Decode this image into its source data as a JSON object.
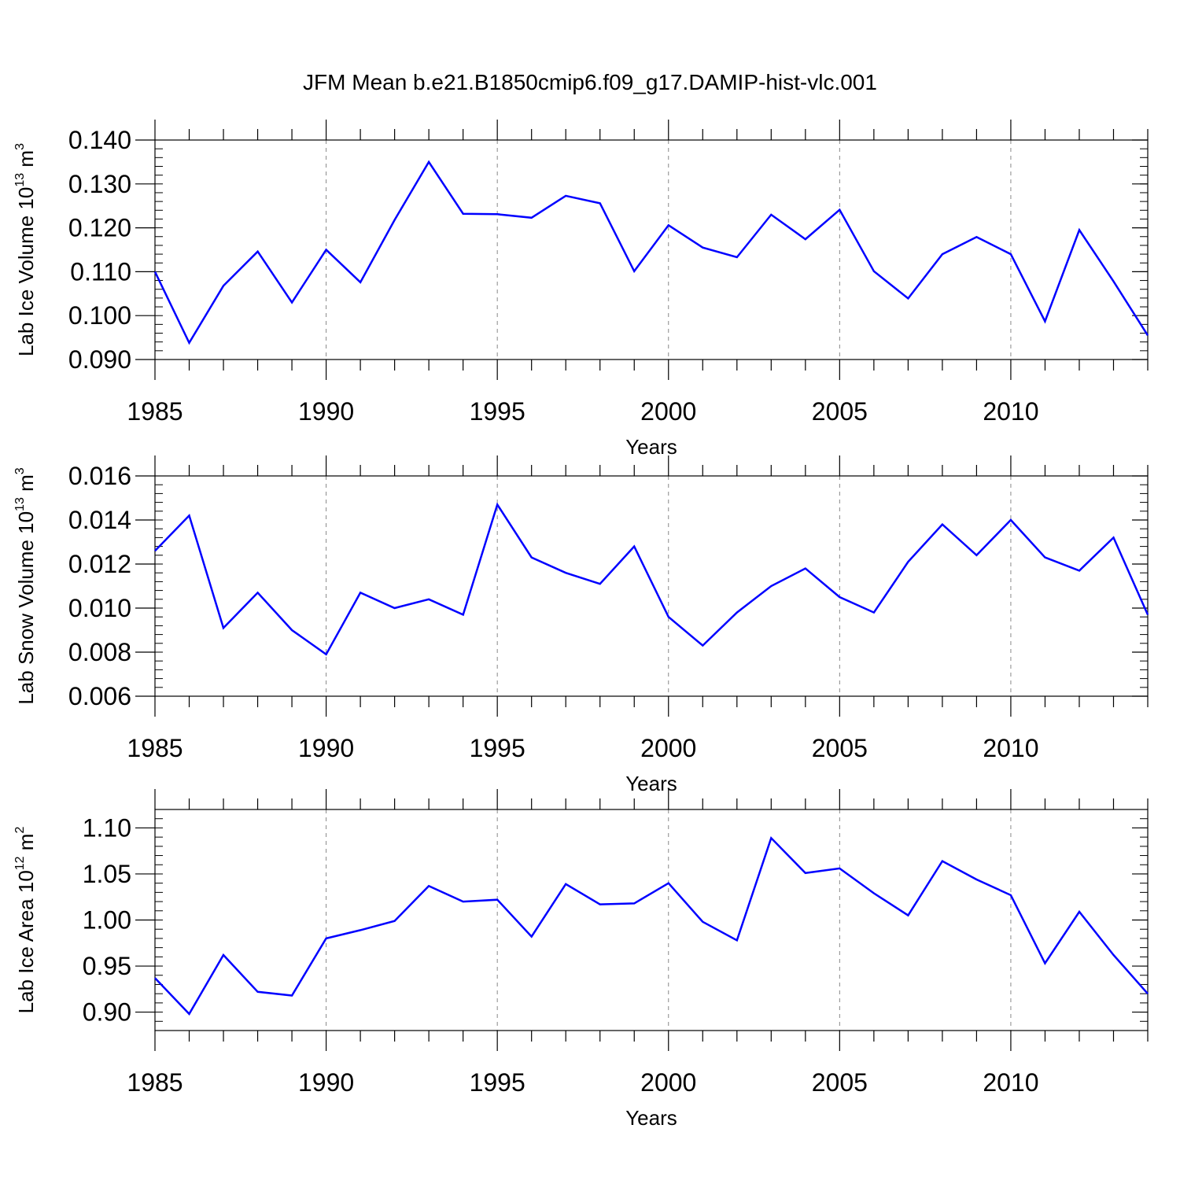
{
  "figure": {
    "title": "JFM Mean b.e21.B1850cmip6.f09_g17.DAMIP-hist-vlc.001",
    "line_color": "#0000ff"
  },
  "chart_data": [
    {
      "type": "line",
      "xlabel": "Years",
      "ylabel": {
        "text": "Lab Ice Volume 10",
        "exponent": "13",
        "unit": " m",
        "unit_exponent": "3"
      },
      "xlim": [
        1985,
        2014
      ],
      "ylim": [
        0.09,
        0.14
      ],
      "x_ticks": [
        1985,
        1990,
        1995,
        2000,
        2005,
        2010
      ],
      "x_tick_labels": [
        "1985",
        "1990",
        "1995",
        "2000",
        "2005",
        "2010"
      ],
      "y_ticks": [
        0.09,
        0.1,
        0.11,
        0.12,
        0.13,
        0.14
      ],
      "y_tick_labels": [
        "0.090",
        "0.100",
        "0.110",
        "0.120",
        "0.130",
        "0.140"
      ],
      "y_minor_step": 0.002,
      "grid": "dashed vertical at major x ticks",
      "x": [
        1985,
        1986,
        1987,
        1988,
        1989,
        1990,
        1991,
        1992,
        1993,
        1994,
        1995,
        1996,
        1997,
        1998,
        1999,
        2000,
        2001,
        2002,
        2003,
        2004,
        2005,
        2006,
        2007,
        2008,
        2009,
        2010,
        2011,
        2012,
        2013,
        2014
      ],
      "series": [
        {
          "name": "Lab Ice Volume",
          "values": [
            0.11,
            0.0938,
            0.1068,
            0.1146,
            0.103,
            0.115,
            0.1076,
            0.1218,
            0.135,
            0.1232,
            0.1231,
            0.1223,
            0.1273,
            0.1256,
            0.1101,
            0.1206,
            0.1155,
            0.1133,
            0.123,
            0.1174,
            0.1241,
            0.1101,
            0.1039,
            0.114,
            0.1179,
            0.114,
            0.0987,
            0.1195,
            0.1078,
            0.0955
          ]
        }
      ]
    },
    {
      "type": "line",
      "xlabel": "Years",
      "ylabel": {
        "text": "Lab Snow Volume 10",
        "exponent": "13",
        "unit": " m",
        "unit_exponent": "3"
      },
      "xlim": [
        1985,
        2014
      ],
      "ylim": [
        0.006,
        0.016
      ],
      "x_ticks": [
        1985,
        1990,
        1995,
        2000,
        2005,
        2010
      ],
      "x_tick_labels": [
        "1985",
        "1990",
        "1995",
        "2000",
        "2005",
        "2010"
      ],
      "y_ticks": [
        0.006,
        0.008,
        0.01,
        0.012,
        0.014,
        0.016
      ],
      "y_tick_labels": [
        "0.006",
        "0.008",
        "0.010",
        "0.012",
        "0.014",
        "0.016"
      ],
      "y_minor_step": 0.0004,
      "grid": "dashed vertical at major x ticks",
      "x": [
        1985,
        1986,
        1987,
        1988,
        1989,
        1990,
        1991,
        1992,
        1993,
        1994,
        1995,
        1996,
        1997,
        1998,
        1999,
        2000,
        2001,
        2002,
        2003,
        2004,
        2005,
        2006,
        2007,
        2008,
        2009,
        2010,
        2011,
        2012,
        2013,
        2014
      ],
      "series": [
        {
          "name": "Lab Snow Volume",
          "values": [
            0.0126,
            0.0142,
            0.0091,
            0.0107,
            0.009,
            0.0079,
            0.0107,
            0.01,
            0.0104,
            0.0097,
            0.0147,
            0.0123,
            0.0116,
            0.0111,
            0.0128,
            0.0096,
            0.0083,
            0.0098,
            0.011,
            0.0118,
            0.0105,
            0.0098,
            0.0121,
            0.0138,
            0.0124,
            0.014,
            0.0123,
            0.0117,
            0.0132,
            0.0097
          ]
        }
      ]
    },
    {
      "type": "line",
      "xlabel": "Years",
      "ylabel": {
        "text": "Lab Ice Area 10",
        "exponent": "12",
        "unit": " m",
        "unit_exponent": "2"
      },
      "xlim": [
        1985,
        2014
      ],
      "ylim": [
        0.88,
        1.12
      ],
      "x_ticks": [
        1985,
        1990,
        1995,
        2000,
        2005,
        2010
      ],
      "x_tick_labels": [
        "1985",
        "1990",
        "1995",
        "2000",
        "2005",
        "2010"
      ],
      "y_ticks": [
        0.9,
        0.95,
        1.0,
        1.05,
        1.1
      ],
      "y_tick_labels": [
        "0.90",
        "0.95",
        "1.00",
        "1.05",
        "1.10"
      ],
      "y_minor_step": 0.01,
      "grid": "dashed vertical at major x ticks",
      "x": [
        1985,
        1986,
        1987,
        1988,
        1989,
        1990,
        1991,
        1992,
        1993,
        1994,
        1995,
        1996,
        1997,
        1998,
        1999,
        2000,
        2001,
        2002,
        2003,
        2004,
        2005,
        2006,
        2007,
        2008,
        2009,
        2010,
        2011,
        2012,
        2013,
        2014
      ],
      "series": [
        {
          "name": "Lab Ice Area",
          "values": [
            0.937,
            0.898,
            0.962,
            0.922,
            0.918,
            0.98,
            0.989,
            0.999,
            1.037,
            1.02,
            1.022,
            0.982,
            1.039,
            1.017,
            1.018,
            1.04,
            0.998,
            0.978,
            1.089,
            1.051,
            1.056,
            1.029,
            1.005,
            1.064,
            1.044,
            1.027,
            0.953,
            1.009,
            0.962,
            0.92
          ]
        }
      ]
    }
  ]
}
